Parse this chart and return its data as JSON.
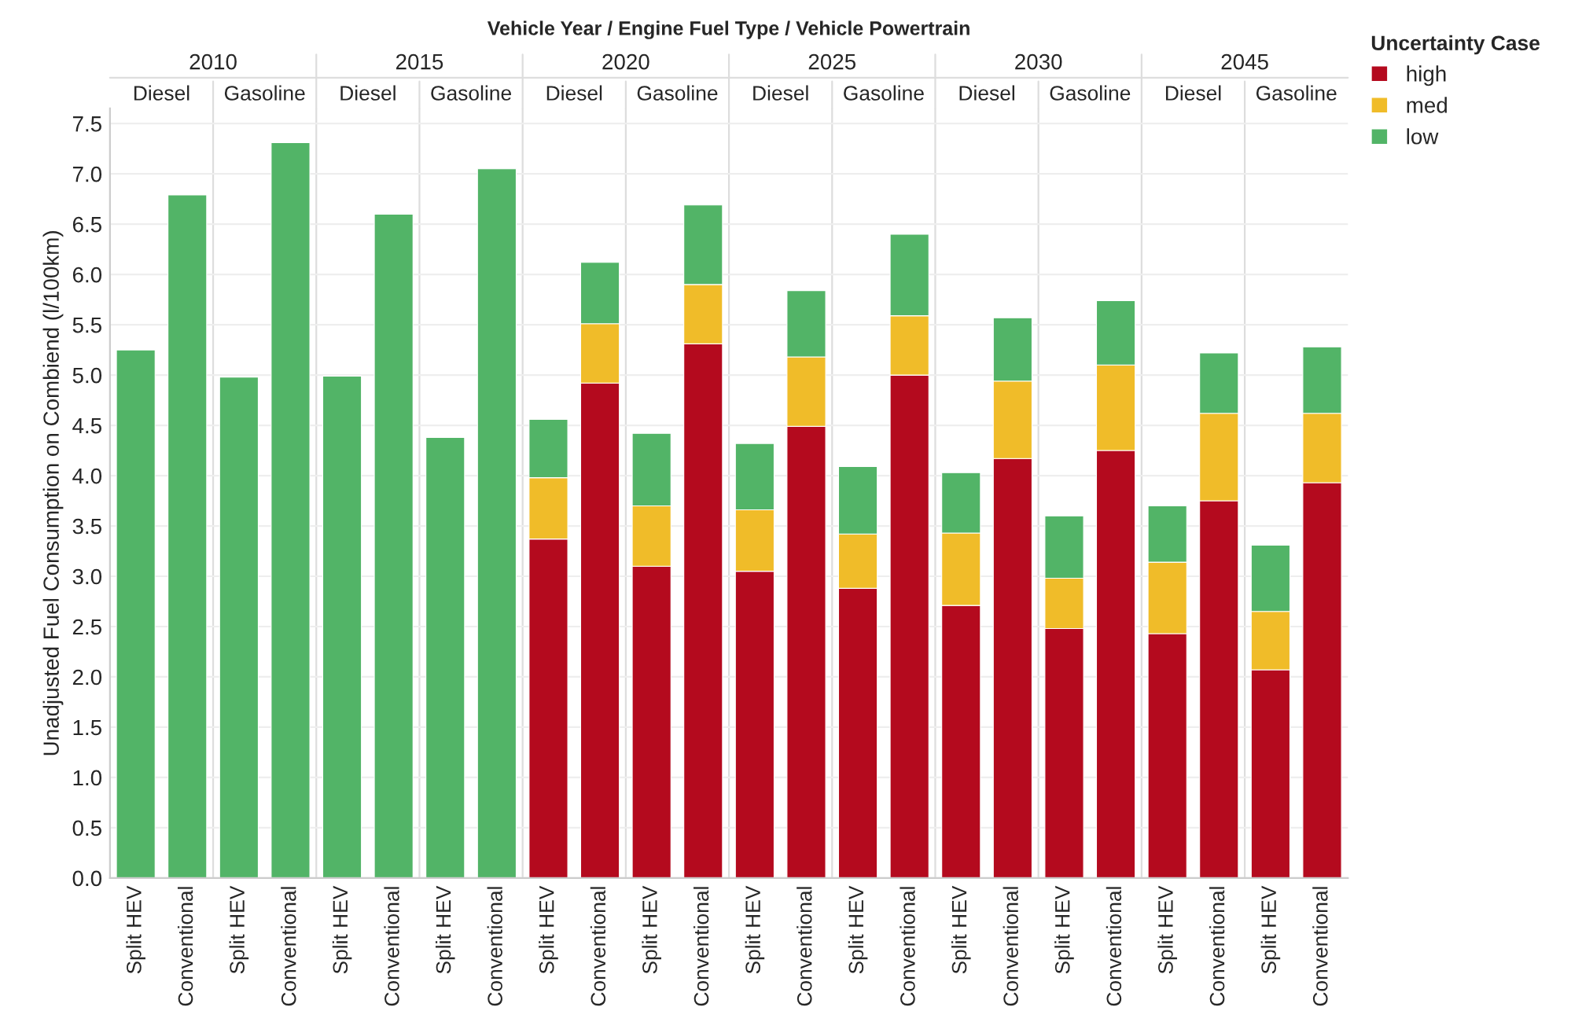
{
  "chart_data": {
    "type": "bar",
    "stacked": true,
    "xlabel": "Vehicle Year / Engine Fuel Type / Vehicle Powertrain",
    "ylabel": "Unadjusted Fuel Consumption on Combiend (l/100km)",
    "legend_title": "Uncertainty Case",
    "legend": "top right",
    "grid": "y",
    "categories": [
      "Split HEV",
      "Conventional",
      "Split HEV",
      "Conventional",
      "Split HEV",
      "Conventional",
      "Split HEV",
      "Conventional",
      "Split HEV",
      "Conventional",
      "Split HEV",
      "Conventional",
      "Split HEV",
      "Conventional",
      "Split HEV",
      "Conventional",
      "Split HEV",
      "Conventional",
      "Split HEV",
      "Conventional",
      "Split HEV",
      "Conventional",
      "Split HEV",
      "Conventional"
    ],
    "annotations": [
      "2010",
      "2015",
      "2020",
      "2025",
      "2030",
      "2045",
      "Diesel",
      "Gasoline",
      "Diesel",
      "Gasoline",
      "Diesel",
      "Gasoline",
      "Diesel",
      "Gasoline",
      "Diesel",
      "Gasoline",
      "Diesel",
      "Gasoline"
    ],
    "series": [
      {
        "name": "high",
        "color": "#b40a1e",
        "values": [
          null,
          null,
          null,
          null,
          null,
          null,
          null,
          null,
          3.37,
          4.92,
          3.1,
          5.31,
          3.05,
          4.49,
          2.88,
          5.0,
          2.71,
          4.17,
          2.48,
          4.25,
          2.43,
          3.75,
          2.07,
          3.93
        ]
      },
      {
        "name": "med",
        "color": "#f0bc29",
        "values": [
          null,
          null,
          null,
          null,
          null,
          null,
          null,
          null,
          0.61,
          0.59,
          0.6,
          0.59,
          0.61,
          0.69,
          0.54,
          0.59,
          0.72,
          0.77,
          0.5,
          0.85,
          0.71,
          0.87,
          0.58,
          0.69
        ]
      },
      {
        "name": "low",
        "color": "#52b467",
        "values": [
          5.25,
          6.79,
          4.98,
          7.31,
          4.99,
          6.6,
          4.38,
          7.05,
          0.58,
          0.61,
          0.72,
          0.79,
          0.66,
          0.66,
          0.67,
          0.81,
          0.6,
          0.63,
          0.62,
          0.64,
          0.56,
          0.6,
          0.66,
          0.66
        ]
      }
    ],
    "ylim": [
      0,
      7.65
    ],
    "yticks": [
      {
        "value": 0,
        "label": "0.0"
      },
      {
        "value": 0.5,
        "label": "0.5"
      },
      {
        "value": 1,
        "label": "1.0"
      },
      {
        "value": 1.5,
        "label": "1.5"
      },
      {
        "value": 2,
        "label": "2.0"
      },
      {
        "value": 2.5,
        "label": "2.5"
      },
      {
        "value": 3,
        "label": "3.0"
      },
      {
        "value": 3.5,
        "label": "3.5"
      },
      {
        "value": 4,
        "label": "4.0"
      },
      {
        "value": 4.5,
        "label": "4.5"
      },
      {
        "value": 5,
        "label": "5.0"
      },
      {
        "value": 5.5,
        "label": "5.5"
      },
      {
        "value": 6,
        "label": "6.0"
      },
      {
        "value": 6.5,
        "label": "6.5"
      },
      {
        "value": 7,
        "label": "7.0"
      },
      {
        "value": 7.5,
        "label": "7.5"
      }
    ]
  }
}
